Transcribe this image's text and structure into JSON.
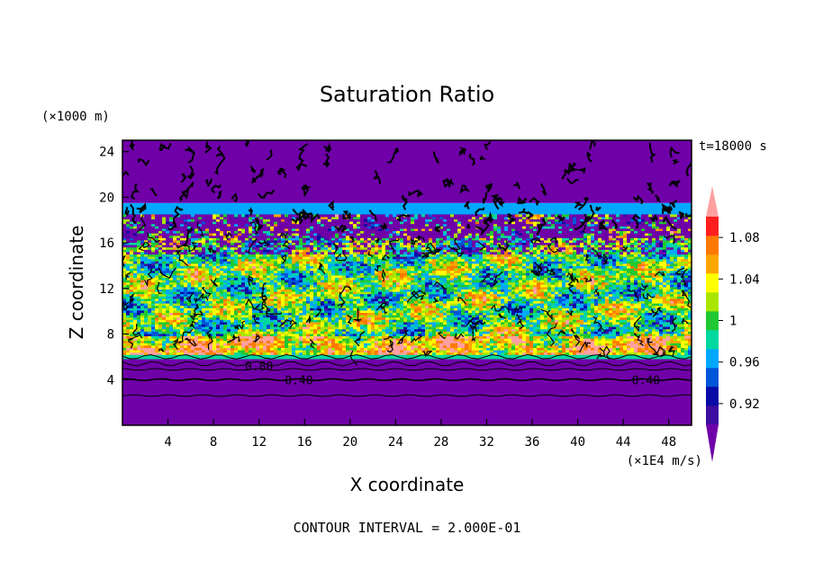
{
  "chart_data": {
    "type": "heatmap",
    "title": "Saturation Ratio",
    "xlabel": "X coordinate",
    "ylabel": "Z coordinate",
    "x_unit": "(×1E4 m/s)",
    "y_unit": "(×1000 m)",
    "time_label": "t=18000 s",
    "footer": "CONTOUR INTERVAL = 2.000E-01",
    "xlim": [
      0,
      50
    ],
    "ylim": [
      0,
      25
    ],
    "x_ticks": [
      4,
      8,
      12,
      16,
      20,
      24,
      28,
      32,
      36,
      40,
      44,
      48
    ],
    "y_ticks": [
      4,
      8,
      12,
      16,
      20,
      24
    ],
    "contour_labels": [
      {
        "text": "0.80",
        "x": 12,
        "z": 5.2
      },
      {
        "text": "0.40",
        "x": 15.5,
        "z": 4.0
      },
      {
        "text": "0.40",
        "x": 46,
        "z": 4.0
      }
    ],
    "colorbar": {
      "levels": [
        0.9,
        0.92,
        0.94,
        0.96,
        0.98,
        1.0,
        1.02,
        1.04,
        1.06,
        1.08,
        1.1
      ],
      "tick_labels": [
        {
          "value": 0.92,
          "label": "0.92"
        },
        {
          "value": 0.96,
          "label": "0.96"
        },
        {
          "value": 1.0,
          "label": "1"
        },
        {
          "value": 1.04,
          "label": "1.04"
        },
        {
          "value": 1.08,
          "label": "1.08"
        }
      ],
      "colors": [
        "#3d0fa0",
        "#0a0aa6",
        "#0055d8",
        "#00a8ff",
        "#00d8a0",
        "#22c832",
        "#a8e600",
        "#ffff00",
        "#ffa500",
        "#ff7800",
        "#ff1e1e"
      ],
      "under_color": "#6f00a8",
      "over_color": "#ffa0a0"
    },
    "field_bands": [
      {
        "z_from": 0,
        "z_to": 5.8,
        "value": 0.4
      },
      {
        "z_from": 5.8,
        "z_to": 7.0,
        "value": 0.99
      },
      {
        "z_from": 7.0,
        "z_to": 16.5,
        "value": 1.0
      },
      {
        "z_from": 16.5,
        "z_to": 19.5,
        "value": 0.96
      },
      {
        "z_from": 19.5,
        "z_to": 25,
        "value": 0.6
      }
    ]
  }
}
